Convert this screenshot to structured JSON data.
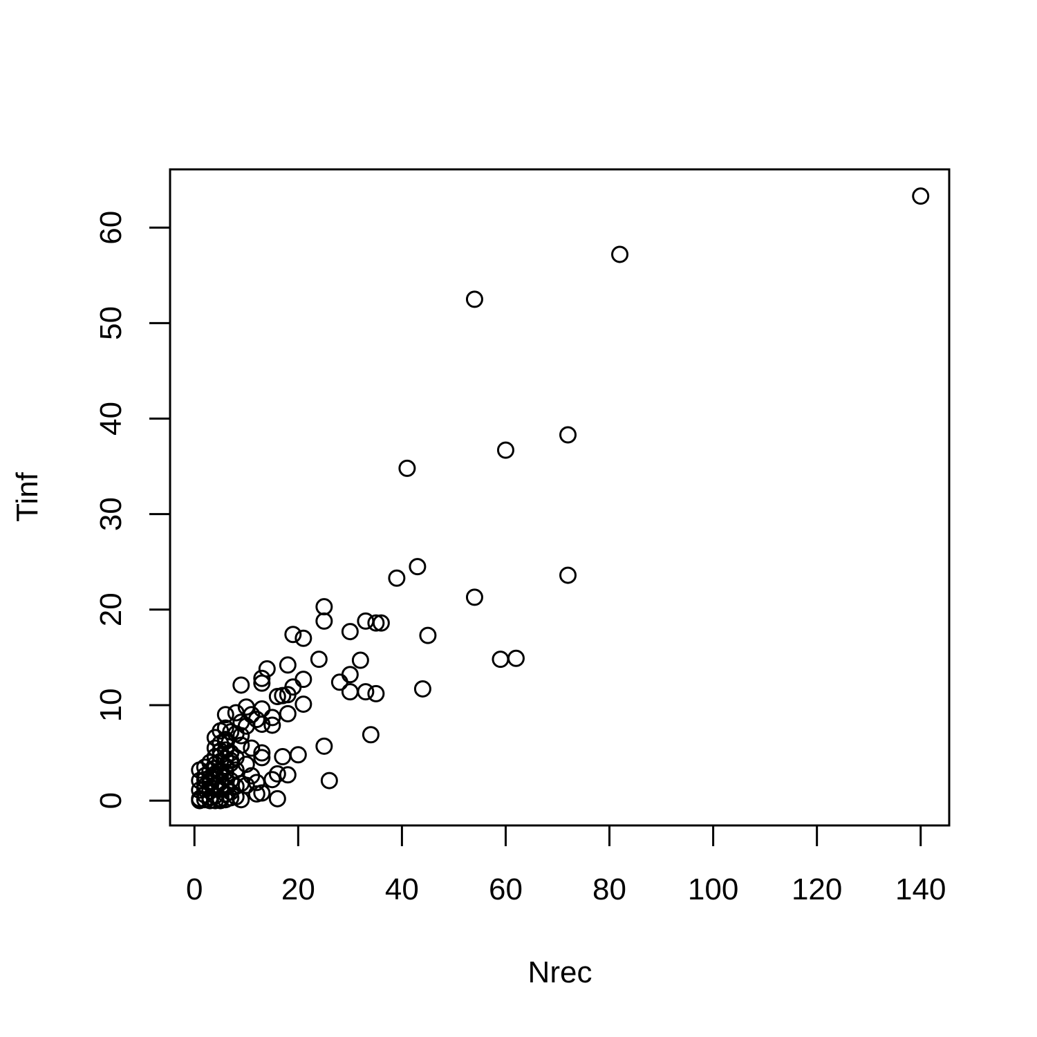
{
  "chart_data": {
    "type": "scatter",
    "xlabel": "Nrec",
    "ylabel": "Tinf",
    "xlim": [
      -4.7,
      145.5
    ],
    "ylim": [
      -2.6,
      66.1
    ],
    "x_ticks": [
      0,
      20,
      40,
      60,
      80,
      100,
      120,
      140
    ],
    "y_ticks": [
      0,
      10,
      20,
      30,
      40,
      50,
      60
    ],
    "grid": false,
    "marker": "open-circle",
    "color": "#000000",
    "points": [
      [
        140,
        63.3
      ],
      [
        82,
        57.2
      ],
      [
        54,
        52.5
      ],
      [
        72,
        38.3
      ],
      [
        60,
        36.7
      ],
      [
        41,
        34.8
      ],
      [
        43,
        24.5
      ],
      [
        39,
        23.3
      ],
      [
        72,
        23.6
      ],
      [
        54,
        21.3
      ],
      [
        25,
        20.3
      ],
      [
        25,
        18.8
      ],
      [
        33,
        18.8
      ],
      [
        35,
        18.6
      ],
      [
        36,
        18.6
      ],
      [
        30,
        17.7
      ],
      [
        45,
        17.3
      ],
      [
        19,
        17.4
      ],
      [
        21,
        17.0
      ],
      [
        59,
        14.8
      ],
      [
        62,
        14.9
      ],
      [
        24,
        14.8
      ],
      [
        32,
        14.7
      ],
      [
        14,
        13.8
      ],
      [
        18,
        14.2
      ],
      [
        30,
        13.2
      ],
      [
        13,
        12.8
      ],
      [
        21,
        12.7
      ],
      [
        28,
        12.4
      ],
      [
        9,
        12.1
      ],
      [
        13,
        12.3
      ],
      [
        19,
        11.9
      ],
      [
        44,
        11.7
      ],
      [
        30,
        11.4
      ],
      [
        33,
        11.4
      ],
      [
        35,
        11.2
      ],
      [
        16,
        10.9
      ],
      [
        17,
        11.0
      ],
      [
        18,
        11.1
      ],
      [
        21,
        10.1
      ],
      [
        10,
        9.8
      ],
      [
        13,
        9.6
      ],
      [
        6,
        9.0
      ],
      [
        8,
        9.2
      ],
      [
        11,
        9.0
      ],
      [
        18,
        9.1
      ],
      [
        12,
        8.5
      ],
      [
        15,
        8.7
      ],
      [
        9,
        8.2
      ],
      [
        13,
        8.0
      ],
      [
        15,
        7.9
      ],
      [
        6,
        7.6
      ],
      [
        10,
        7.8
      ],
      [
        34,
        6.9
      ],
      [
        5,
        7.3
      ],
      [
        7,
        7.2
      ],
      [
        8,
        7.0
      ],
      [
        9,
        6.8
      ],
      [
        4,
        6.6
      ],
      [
        6,
        6.4
      ],
      [
        25,
        5.7
      ],
      [
        9,
        5.8
      ],
      [
        11,
        5.5
      ],
      [
        13,
        5.0
      ],
      [
        5,
        5.2
      ],
      [
        7,
        5.0
      ],
      [
        17,
        4.6
      ],
      [
        20,
        4.8
      ],
      [
        13,
        4.5
      ],
      [
        4,
        4.6
      ],
      [
        6,
        4.4
      ],
      [
        8,
        4.5
      ],
      [
        3,
        4.0
      ],
      [
        5,
        4.1
      ],
      [
        7,
        3.9
      ],
      [
        10,
        3.8
      ],
      [
        2,
        3.5
      ],
      [
        4,
        3.4
      ],
      [
        6,
        3.6
      ],
      [
        1,
        3.2
      ],
      [
        3,
        3.1
      ],
      [
        5,
        3.0
      ],
      [
        8,
        3.2
      ],
      [
        16,
        2.8
      ],
      [
        18,
        2.7
      ],
      [
        2,
        2.6
      ],
      [
        4,
        2.5
      ],
      [
        6,
        2.4
      ],
      [
        11,
        2.6
      ],
      [
        26,
        2.1
      ],
      [
        15,
        2.2
      ],
      [
        1,
        2.1
      ],
      [
        3,
        2.0
      ],
      [
        5,
        1.9
      ],
      [
        7,
        2.1
      ],
      [
        9,
        1.8
      ],
      [
        12,
        1.9
      ],
      [
        2,
        1.5
      ],
      [
        4,
        1.6
      ],
      [
        6,
        1.4
      ],
      [
        8,
        1.5
      ],
      [
        10,
        1.6
      ],
      [
        1,
        1.1
      ],
      [
        3,
        1.0
      ],
      [
        5,
        1.2
      ],
      [
        7,
        0.9
      ],
      [
        13,
        0.8
      ],
      [
        12,
        0.7
      ],
      [
        2,
        0.6
      ],
      [
        4,
        0.5
      ],
      [
        6,
        0.7
      ],
      [
        8,
        0.4
      ],
      [
        16,
        0.2
      ],
      [
        9,
        0.1
      ],
      [
        1,
        0.2
      ],
      [
        2,
        0.1
      ],
      [
        3,
        0.3
      ],
      [
        4,
        0.0
      ],
      [
        5,
        0.2
      ],
      [
        6,
        0.1
      ],
      [
        7,
        0.3
      ],
      [
        1,
        0.0
      ],
      [
        3,
        0.0
      ],
      [
        5,
        0.0
      ],
      [
        2,
        2.2
      ],
      [
        4,
        2.8
      ],
      [
        3,
        1.8
      ],
      [
        5,
        2.6
      ],
      [
        6,
        5.3
      ],
      [
        5,
        6.0
      ],
      [
        4,
        5.5
      ],
      [
        6,
        6.2
      ],
      [
        5,
        4.7
      ],
      [
        4,
        3.8
      ],
      [
        3,
        2.4
      ],
      [
        2,
        1.2
      ],
      [
        7,
        4.2
      ],
      [
        6,
        3.0
      ]
    ]
  }
}
